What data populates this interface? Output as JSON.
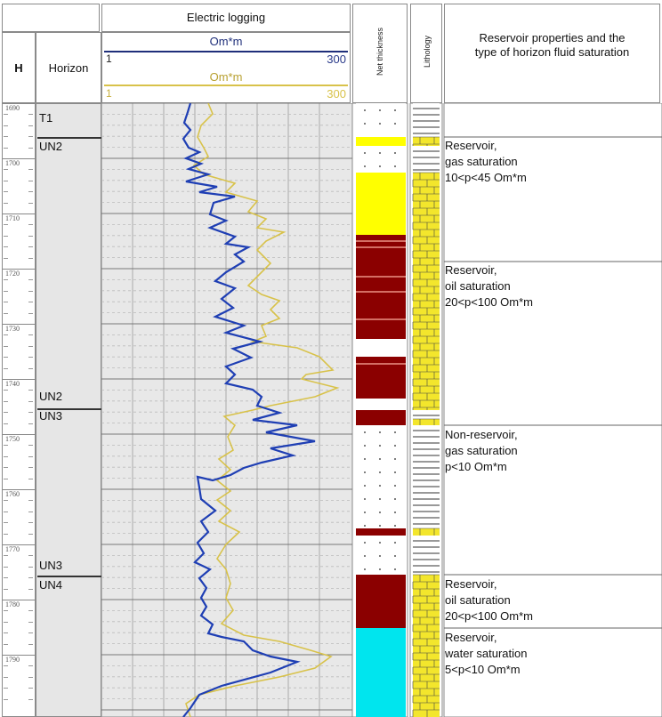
{
  "header": {
    "h_label": "H",
    "horizon_label": "Horizon",
    "electric_logging_title": "Electric logging",
    "curve1": {
      "unit": "Om*m",
      "min": "1",
      "max": "300",
      "color": "#1f3fb4"
    },
    "curve2": {
      "unit": "Om*m",
      "min": "1",
      "max": "300",
      "color": "#d8c24a"
    },
    "net_thickness_label": "Net thickness",
    "lithology_label": "Lithology",
    "properties_title": "Reservoir properties and the type of horizon fluid saturation"
  },
  "depth_labels": [
    "1690",
    "1700",
    "1710",
    "1720",
    "1730",
    "1740",
    "1750",
    "1760",
    "1770",
    "1780",
    "1790"
  ],
  "horizons": [
    {
      "label": "T1"
    },
    {
      "label": "UN2"
    },
    {
      "label": "UN2"
    },
    {
      "label": "UN3"
    },
    {
      "label": "UN3"
    },
    {
      "label": "UN4"
    }
  ],
  "intervals": [
    {
      "line1": "Reservoir,",
      "line2": "gas saturation",
      "line3": "10<p<45 Om*m"
    },
    {
      "line1": "Reservoir,",
      "line2": "oil saturation",
      "line3": "20<p<100 Om*m"
    },
    {
      "line1": "Non-reservoir,",
      "line2": "gas saturation",
      "line3": "p<10 Om*m"
    },
    {
      "line1": "Reservoir,",
      "line2": "oil saturation",
      "line3": "20<p<100 Om*m"
    },
    {
      "line1": "Reservoir,",
      "line2": "water saturation",
      "line3": "5<p<10 Om*m"
    }
  ],
  "colors": {
    "gas": "#ffff00",
    "oil": "#8b0000",
    "water": "#00e5ee",
    "limestone": "#f3e62c",
    "track_bg": "#e8e8e8"
  }
}
